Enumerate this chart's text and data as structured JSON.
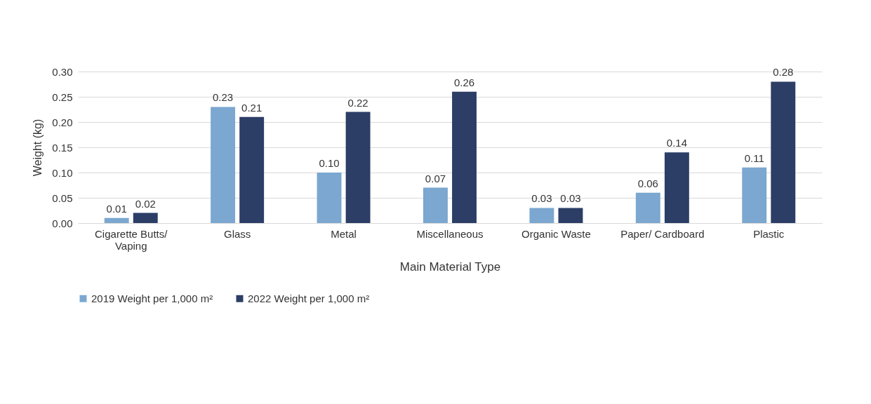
{
  "chart_data": {
    "type": "bar",
    "xlabel": "Main Material Type",
    "ylabel": "Weight (kg)",
    "categories": [
      "Cigarette Butts/ Vaping",
      "Glass",
      "Metal",
      "Miscellaneous",
      "Organic Waste",
      "Paper/ Cardboard",
      "Plastic"
    ],
    "series": [
      {
        "name": "2019 Weight per 1,000 m²",
        "color": "#7ba7d0",
        "values": [
          0.01,
          0.23,
          0.1,
          0.07,
          0.03,
          0.06,
          0.11
        ],
        "value_labels": [
          "0.01",
          "0.23",
          "0.10",
          "0.07",
          "0.03",
          "0.06",
          "0.11"
        ]
      },
      {
        "name": "2022 Weight per 1,000 m²",
        "color": "#2c3e66",
        "values": [
          0.02,
          0.21,
          0.22,
          0.26,
          0.03,
          0.14,
          0.28
        ],
        "value_labels": [
          "0.02",
          "0.21",
          "0.22",
          "0.26",
          "0.03",
          "0.14",
          "0.28"
        ]
      }
    ],
    "ylim": [
      0,
      0.3
    ],
    "yticks": [
      {
        "value": 0,
        "label": "0.00"
      },
      {
        "value": 0.05,
        "label": "0.05"
      },
      {
        "value": 0.1,
        "label": "0.10"
      },
      {
        "value": 0.15,
        "label": "0.15"
      },
      {
        "value": 0.2,
        "label": "0.20"
      },
      {
        "value": 0.25,
        "label": "0.25"
      },
      {
        "value": 0.3,
        "label": "0.30"
      }
    ],
    "grid": "y",
    "legend": "bottom"
  }
}
